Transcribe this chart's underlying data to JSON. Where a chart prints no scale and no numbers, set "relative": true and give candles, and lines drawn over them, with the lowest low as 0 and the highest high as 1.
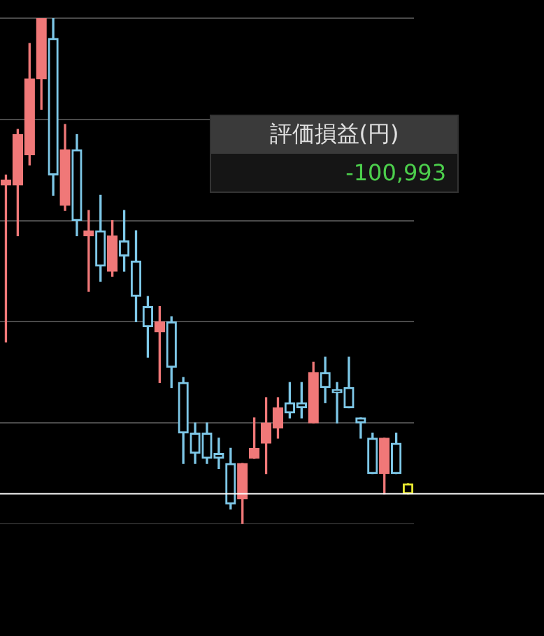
{
  "chart_data": {
    "type": "candlestick",
    "relative": true,
    "grid": true,
    "categories": [
      null,
      null,
      null,
      null,
      null,
      null,
      null,
      null,
      null,
      null,
      null,
      null,
      null,
      null,
      null,
      null,
      null,
      null,
      null,
      null,
      null,
      null,
      null,
      null,
      null,
      null,
      null,
      null,
      null,
      null,
      null,
      null,
      null,
      null,
      null
    ],
    "ohlc": [
      [
        0.67,
        0.69,
        0.36,
        0.68
      ],
      [
        0.67,
        0.78,
        0.57,
        0.77
      ],
      [
        0.73,
        0.95,
        0.71,
        0.88
      ],
      [
        0.88,
        1,
        0.82,
        1
      ],
      [
        0.96,
        1,
        0.65,
        0.69
      ],
      [
        0.63,
        0.79,
        0.62,
        0.74
      ],
      [
        0.74,
        0.77,
        0.57,
        0.6
      ],
      [
        0.57,
        0.62,
        0.46,
        0.58
      ],
      [
        0.58,
        0.65,
        0.48,
        0.51
      ],
      [
        0.5,
        0.6,
        0.49,
        0.57
      ],
      [
        0.56,
        0.62,
        0.5,
        0.53
      ],
      [
        0.52,
        0.58,
        0.4,
        0.45
      ],
      [
        0.43,
        0.45,
        0.33,
        0.39
      ],
      [
        0.38,
        0.43,
        0.28,
        0.4
      ],
      [
        0.4,
        0.41,
        0.27,
        0.31
      ],
      [
        0.28,
        0.29,
        0.12,
        0.18
      ],
      [
        0.18,
        0.2,
        0.12,
        0.14
      ],
      [
        0.18,
        0.2,
        0.12,
        0.13
      ],
      [
        0.14,
        0.17,
        0.11,
        0.13
      ],
      [
        0.12,
        0.15,
        0.03,
        0.04
      ],
      [
        0.05,
        0.12,
        0,
        0.12
      ],
      [
        0.13,
        0.21,
        0.13,
        0.15
      ],
      [
        0.16,
        0.25,
        0.1,
        0.2
      ],
      [
        0.19,
        0.25,
        0.17,
        0.23
      ],
      [
        0.24,
        0.28,
        0.21,
        0.22
      ],
      [
        0.24,
        0.28,
        0.21,
        0.23
      ],
      [
        0.2,
        0.32,
        0.2,
        0.3
      ],
      [
        0.3,
        0.33,
        0.24,
        0.27
      ],
      [
        0.26,
        0.28,
        0.2,
        0.26
      ],
      [
        0.27,
        0.33,
        0.23,
        0.23
      ],
      [
        0.21,
        0.21,
        0.17,
        0.2
      ],
      [
        0.17,
        0.18,
        0.1,
        0.1
      ],
      [
        0.1,
        0.17,
        0.06,
        0.17
      ],
      [
        0.16,
        0.18,
        0.1,
        0.1
      ],
      [
        0.08,
        0.08,
        0.06,
        0.06
      ]
    ],
    "colors": [
      "#f07878",
      "#f07878",
      "#f07878",
      "#f07878",
      "#7ec8e8",
      "#f07878",
      "#7ec8e8",
      "#f07878",
      "#7ec8e8",
      "#f07878",
      "#7ec8e8",
      "#7ec8e8",
      "#7ec8e8",
      "#f07878",
      "#7ec8e8",
      "#7ec8e8",
      "#7ec8e8",
      "#7ec8e8",
      "#7ec8e8",
      "#7ec8e8",
      "#f07878",
      "#f07878",
      "#f07878",
      "#f07878",
      "#7ec8e8",
      "#7ec8e8",
      "#f07878",
      "#7ec8e8",
      "#7ec8e8",
      "#7ec8e8",
      "#7ec8e8",
      "#7ec8e8",
      "#f07878",
      "#7ec8e8",
      "#e8e830"
    ],
    "ref_lines": [
      {
        "axis": "y",
        "value": 0.06,
        "color": "#ffffff"
      }
    ],
    "annotations": [
      "評価損益(円)",
      "-100,993"
    ]
  }
}
